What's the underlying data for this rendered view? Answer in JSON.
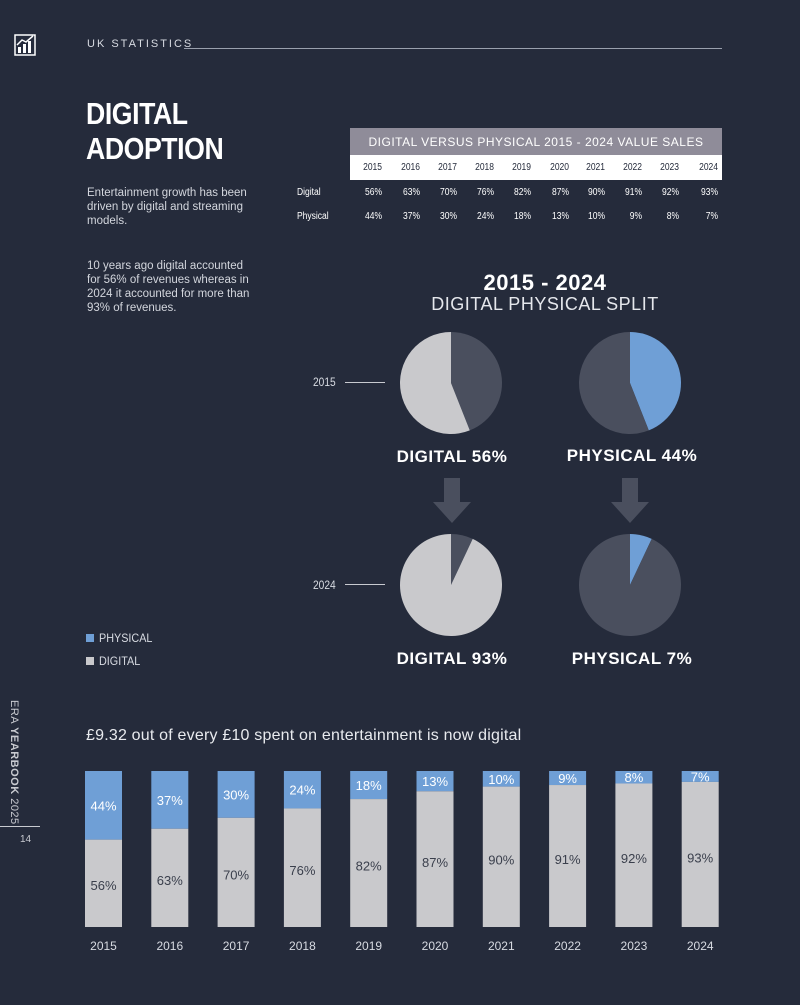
{
  "header": {
    "icon": "chart-icon",
    "label": "UK STATISTICS"
  },
  "title": {
    "line1": "DIGITAL",
    "line2": "ADOPTION"
  },
  "intro": {
    "p1": "Entertainment growth has been driven by digital and streaming models.",
    "p2": "10 years ago digital accounted for 56% of revenues whereas in 2024 it accounted for more than 93% of revenues."
  },
  "colors": {
    "background": "#252b3b",
    "physical": "#6f9fd6",
    "digital": "#c9c9cc",
    "dark_slice": "#4a4f5e"
  },
  "table": {
    "title": "DIGITAL VERSUS PHYSICAL 2015 - 2024 VALUE SALES",
    "years": [
      "2015",
      "2016",
      "2017",
      "2018",
      "2019",
      "2020",
      "2021",
      "2022",
      "2023",
      "2024"
    ],
    "rows": [
      {
        "label": "Digital",
        "values": [
          "56%",
          "63%",
          "70%",
          "76%",
          "82%",
          "87%",
          "90%",
          "91%",
          "92%",
          "93%"
        ]
      },
      {
        "label": "Physical",
        "values": [
          "44%",
          "37%",
          "30%",
          "24%",
          "18%",
          "13%",
          "10%",
          "9%",
          "8%",
          "7%"
        ]
      }
    ]
  },
  "split": {
    "title": "2015 - 2024",
    "subtitle": "DIGITAL PHYSICAL SPLIT",
    "year_top": "2015",
    "year_bottom": "2024",
    "label_digital_2015": "DIGITAL 56%",
    "label_physical_2015": "PHYSICAL 44%",
    "label_digital_2024": "DIGITAL 93%",
    "label_physical_2024": "PHYSICAL 7%"
  },
  "legend": {
    "physical": "PHYSICAL",
    "digital": "DIGITAL"
  },
  "side": {
    "text_era": "ERA ",
    "text_bold": "YEARBOOK",
    "text_year": " 2025",
    "page": "14"
  },
  "chart_data": [
    {
      "type": "pie",
      "title": "2015",
      "slices": [
        {
          "name": "Digital",
          "value": 56
        },
        {
          "name": "Physical",
          "value": 44
        }
      ]
    },
    {
      "type": "pie",
      "title": "2024",
      "slices": [
        {
          "name": "Digital",
          "value": 93
        },
        {
          "name": "Physical",
          "value": 7
        }
      ]
    },
    {
      "type": "bar",
      "stacked": true,
      "title": "£9.32 out of every £10 spent on entertainment is now digital",
      "categories": [
        "2015",
        "2016",
        "2017",
        "2018",
        "2019",
        "2020",
        "2021",
        "2022",
        "2023",
        "2024"
      ],
      "series": [
        {
          "name": "DIGITAL",
          "values": [
            56,
            63,
            70,
            76,
            82,
            87,
            90,
            91,
            92,
            93
          ],
          "labels": [
            "56%",
            "63%",
            "70%",
            "76%",
            "82%",
            "87%",
            "90%",
            "91%",
            "92%",
            "93%"
          ]
        },
        {
          "name": "PHYSICAL",
          "values": [
            44,
            37,
            30,
            24,
            18,
            13,
            10,
            9,
            8,
            7
          ],
          "labels": [
            "44%",
            "37%",
            "30%",
            "24%",
            "18%",
            "13%",
            "10%",
            "9%",
            "8%",
            "7%"
          ]
        }
      ],
      "ylim": [
        0,
        100
      ]
    }
  ]
}
